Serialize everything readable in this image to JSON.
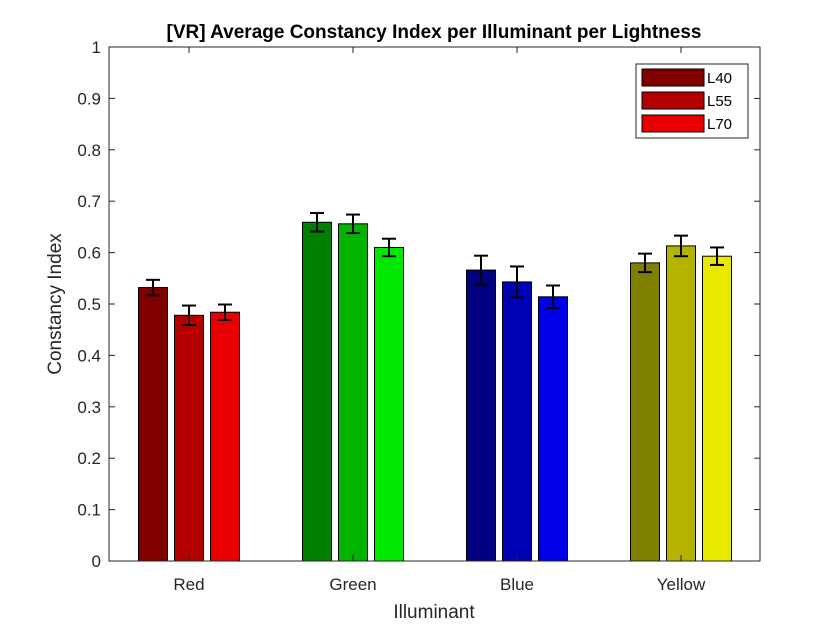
{
  "chart_data": {
    "type": "bar",
    "title": "[VR] Average Constancy Index per Illuminant per Lightness",
    "xlabel": "Illuminant",
    "ylabel": "Constancy Index",
    "categories": [
      "Red",
      "Green",
      "Blue",
      "Yellow"
    ],
    "ylim": [
      0,
      1
    ],
    "yticks": [
      "0",
      "0.1",
      "0.2",
      "0.3",
      "0.4",
      "0.5",
      "0.6",
      "0.7",
      "0.8",
      "0.9",
      "1"
    ],
    "legend_placement": "top-right",
    "grid": false,
    "series": [
      {
        "name": "L40",
        "legend_color": "#800000",
        "values": [
          0.532,
          0.659,
          0.566,
          0.58
        ],
        "errors": [
          0.015,
          0.018,
          0.028,
          0.018
        ]
      },
      {
        "name": "L55",
        "legend_color": "#b40000",
        "values": [
          0.478,
          0.656,
          0.543,
          0.613
        ],
        "errors": [
          0.019,
          0.018,
          0.03,
          0.02
        ]
      },
      {
        "name": "L70",
        "legend_color": "#e80000",
        "values": [
          0.484,
          0.61,
          0.514,
          0.593
        ],
        "errors": [
          0.015,
          0.017,
          0.022,
          0.017
        ]
      }
    ],
    "bar_colors": [
      [
        "#800000",
        "#b40000",
        "#e80000"
      ],
      [
        "#008000",
        "#00b400",
        "#00e800"
      ],
      [
        "#000080",
        "#0000b4",
        "#0000e8"
      ],
      [
        "#808000",
        "#b4b400",
        "#e8e800"
      ]
    ]
  }
}
